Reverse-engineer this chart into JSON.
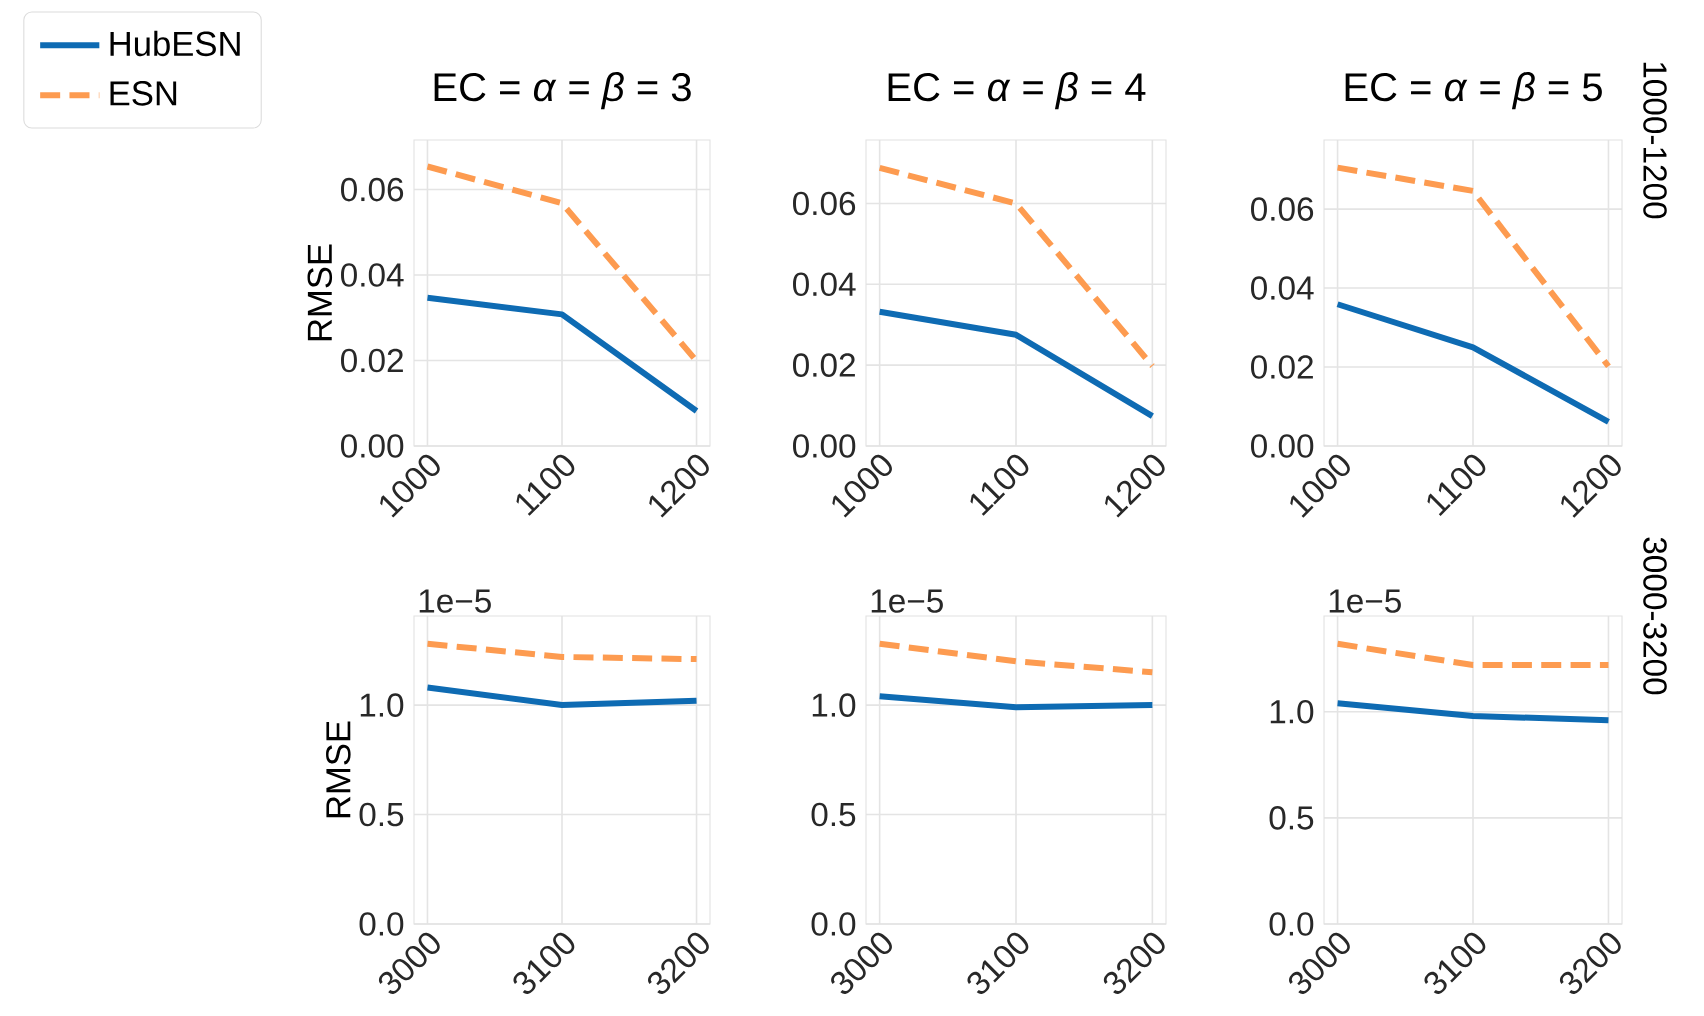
{
  "chart_data": [
    {
      "type": "line",
      "title": "EC = *α* = *β* = 3",
      "ylabel": "RMSE",
      "x": [
        1000,
        1100,
        1200
      ],
      "xlim": [
        990,
        1210
      ],
      "xticks": [
        1000,
        1100,
        1200
      ],
      "ylim": [
        0,
        0.0716
      ],
      "yticks": [
        {
          "value": 0,
          "label": "0.00"
        },
        {
          "value": 0.02,
          "label": "0.02"
        },
        {
          "value": 0.04,
          "label": "0.04"
        },
        {
          "value": 0.06,
          "label": "0.06"
        }
      ],
      "grid": true,
      "legend": "top left",
      "series": [
        {
          "name": "HubESN",
          "color": "#0e6bb3",
          "line_style": "solid",
          "values": [
            0.0347,
            0.0308,
            0.0082
          ]
        },
        {
          "name": "ESN",
          "color": "#fd9b50",
          "line_style": "dashed",
          "values": [
            0.0654,
            0.0568,
            0.0199
          ]
        }
      ]
    },
    {
      "type": "line",
      "title": "EC = *α* = *β* = 4",
      "x": [
        1000,
        1100,
        1200
      ],
      "xlim": [
        990,
        1210
      ],
      "xticks": [
        1000,
        1100,
        1200
      ],
      "ylim": [
        0,
        0.0757
      ],
      "yticks": [
        {
          "value": 0,
          "label": "0.00"
        },
        {
          "value": 0.02,
          "label": "0.02"
        },
        {
          "value": 0.04,
          "label": "0.04"
        },
        {
          "value": 0.06,
          "label": "0.06"
        }
      ],
      "grid": true,
      "series": [
        {
          "color": "#0e6bb3",
          "line_style": "solid",
          "values": [
            0.0332,
            0.0275,
            0.0074
          ]
        },
        {
          "color": "#fd9b50",
          "line_style": "dashed",
          "values": [
            0.0688,
            0.06,
            0.0198
          ]
        }
      ]
    },
    {
      "type": "line",
      "title": "EC = *α* = *β* = 5",
      "y2label": "1000-1200",
      "x": [
        1000,
        1100,
        1200
      ],
      "xlim": [
        990,
        1210
      ],
      "xticks": [
        1000,
        1100,
        1200
      ],
      "ylim": [
        0,
        0.0775
      ],
      "yticks": [
        {
          "value": 0,
          "label": "0.00"
        },
        {
          "value": 0.02,
          "label": "0.02"
        },
        {
          "value": 0.04,
          "label": "0.04"
        },
        {
          "value": 0.06,
          "label": "0.06"
        }
      ],
      "grid": true,
      "series": [
        {
          "color": "#0e6bb3",
          "line_style": "solid",
          "values": [
            0.0359,
            0.025,
            0.0061
          ]
        },
        {
          "color": "#fd9b50",
          "line_style": "dashed",
          "values": [
            0.0705,
            0.0646,
            0.0202
          ]
        }
      ]
    },
    {
      "type": "line",
      "ylabel": "RMSE",
      "annotations": [
        "1e−5"
      ],
      "x": [
        3000,
        3100,
        3200
      ],
      "xlim": [
        2990,
        3210
      ],
      "xticks": [
        3000,
        3100,
        3200
      ],
      "ylim": [
        0,
        1.407
      ],
      "yticks": [
        {
          "value": 0,
          "label": "0.0"
        },
        {
          "value": 0.5,
          "label": "0.5"
        },
        {
          "value": 1,
          "label": "1.0"
        }
      ],
      "grid": true,
      "series": [
        {
          "color": "#0e6bb3",
          "line_style": "solid",
          "values": [
            1.08,
            1.0,
            1.02
          ]
        },
        {
          "color": "#fd9b50",
          "line_style": "dashed",
          "values": [
            1.28,
            1.22,
            1.21
          ]
        }
      ]
    },
    {
      "type": "line",
      "annotations": [
        "1e−5"
      ],
      "x": [
        3000,
        3100,
        3200
      ],
      "xlim": [
        2990,
        3210
      ],
      "xticks": [
        3000,
        3100,
        3200
      ],
      "ylim": [
        0,
        1.407
      ],
      "yticks": [
        {
          "value": 0,
          "label": "0.0"
        },
        {
          "value": 0.5,
          "label": "0.5"
        },
        {
          "value": 1,
          "label": "1.0"
        }
      ],
      "grid": true,
      "series": [
        {
          "color": "#0e6bb3",
          "line_style": "solid",
          "values": [
            1.04,
            0.99,
            1.0
          ]
        },
        {
          "color": "#fd9b50",
          "line_style": "dashed",
          "values": [
            1.28,
            1.2,
            1.15
          ]
        }
      ]
    },
    {
      "type": "line",
      "y2label": "3000-3200",
      "annotations": [
        "1e−5"
      ],
      "x": [
        3000,
        3100,
        3200
      ],
      "xlim": [
        2990,
        3210
      ],
      "xticks": [
        3000,
        3100,
        3200
      ],
      "ylim": [
        0,
        1.451
      ],
      "yticks": [
        {
          "value": 0,
          "label": "0.0"
        },
        {
          "value": 0.5,
          "label": "0.5"
        },
        {
          "value": 1,
          "label": "1.0"
        }
      ],
      "grid": true,
      "series": [
        {
          "color": "#0e6bb3",
          "line_style": "solid",
          "values": [
            1.04,
            0.98,
            0.96
          ]
        },
        {
          "color": "#fd9b50",
          "line_style": "dashed",
          "values": [
            1.32,
            1.22,
            1.22
          ]
        }
      ]
    }
  ]
}
